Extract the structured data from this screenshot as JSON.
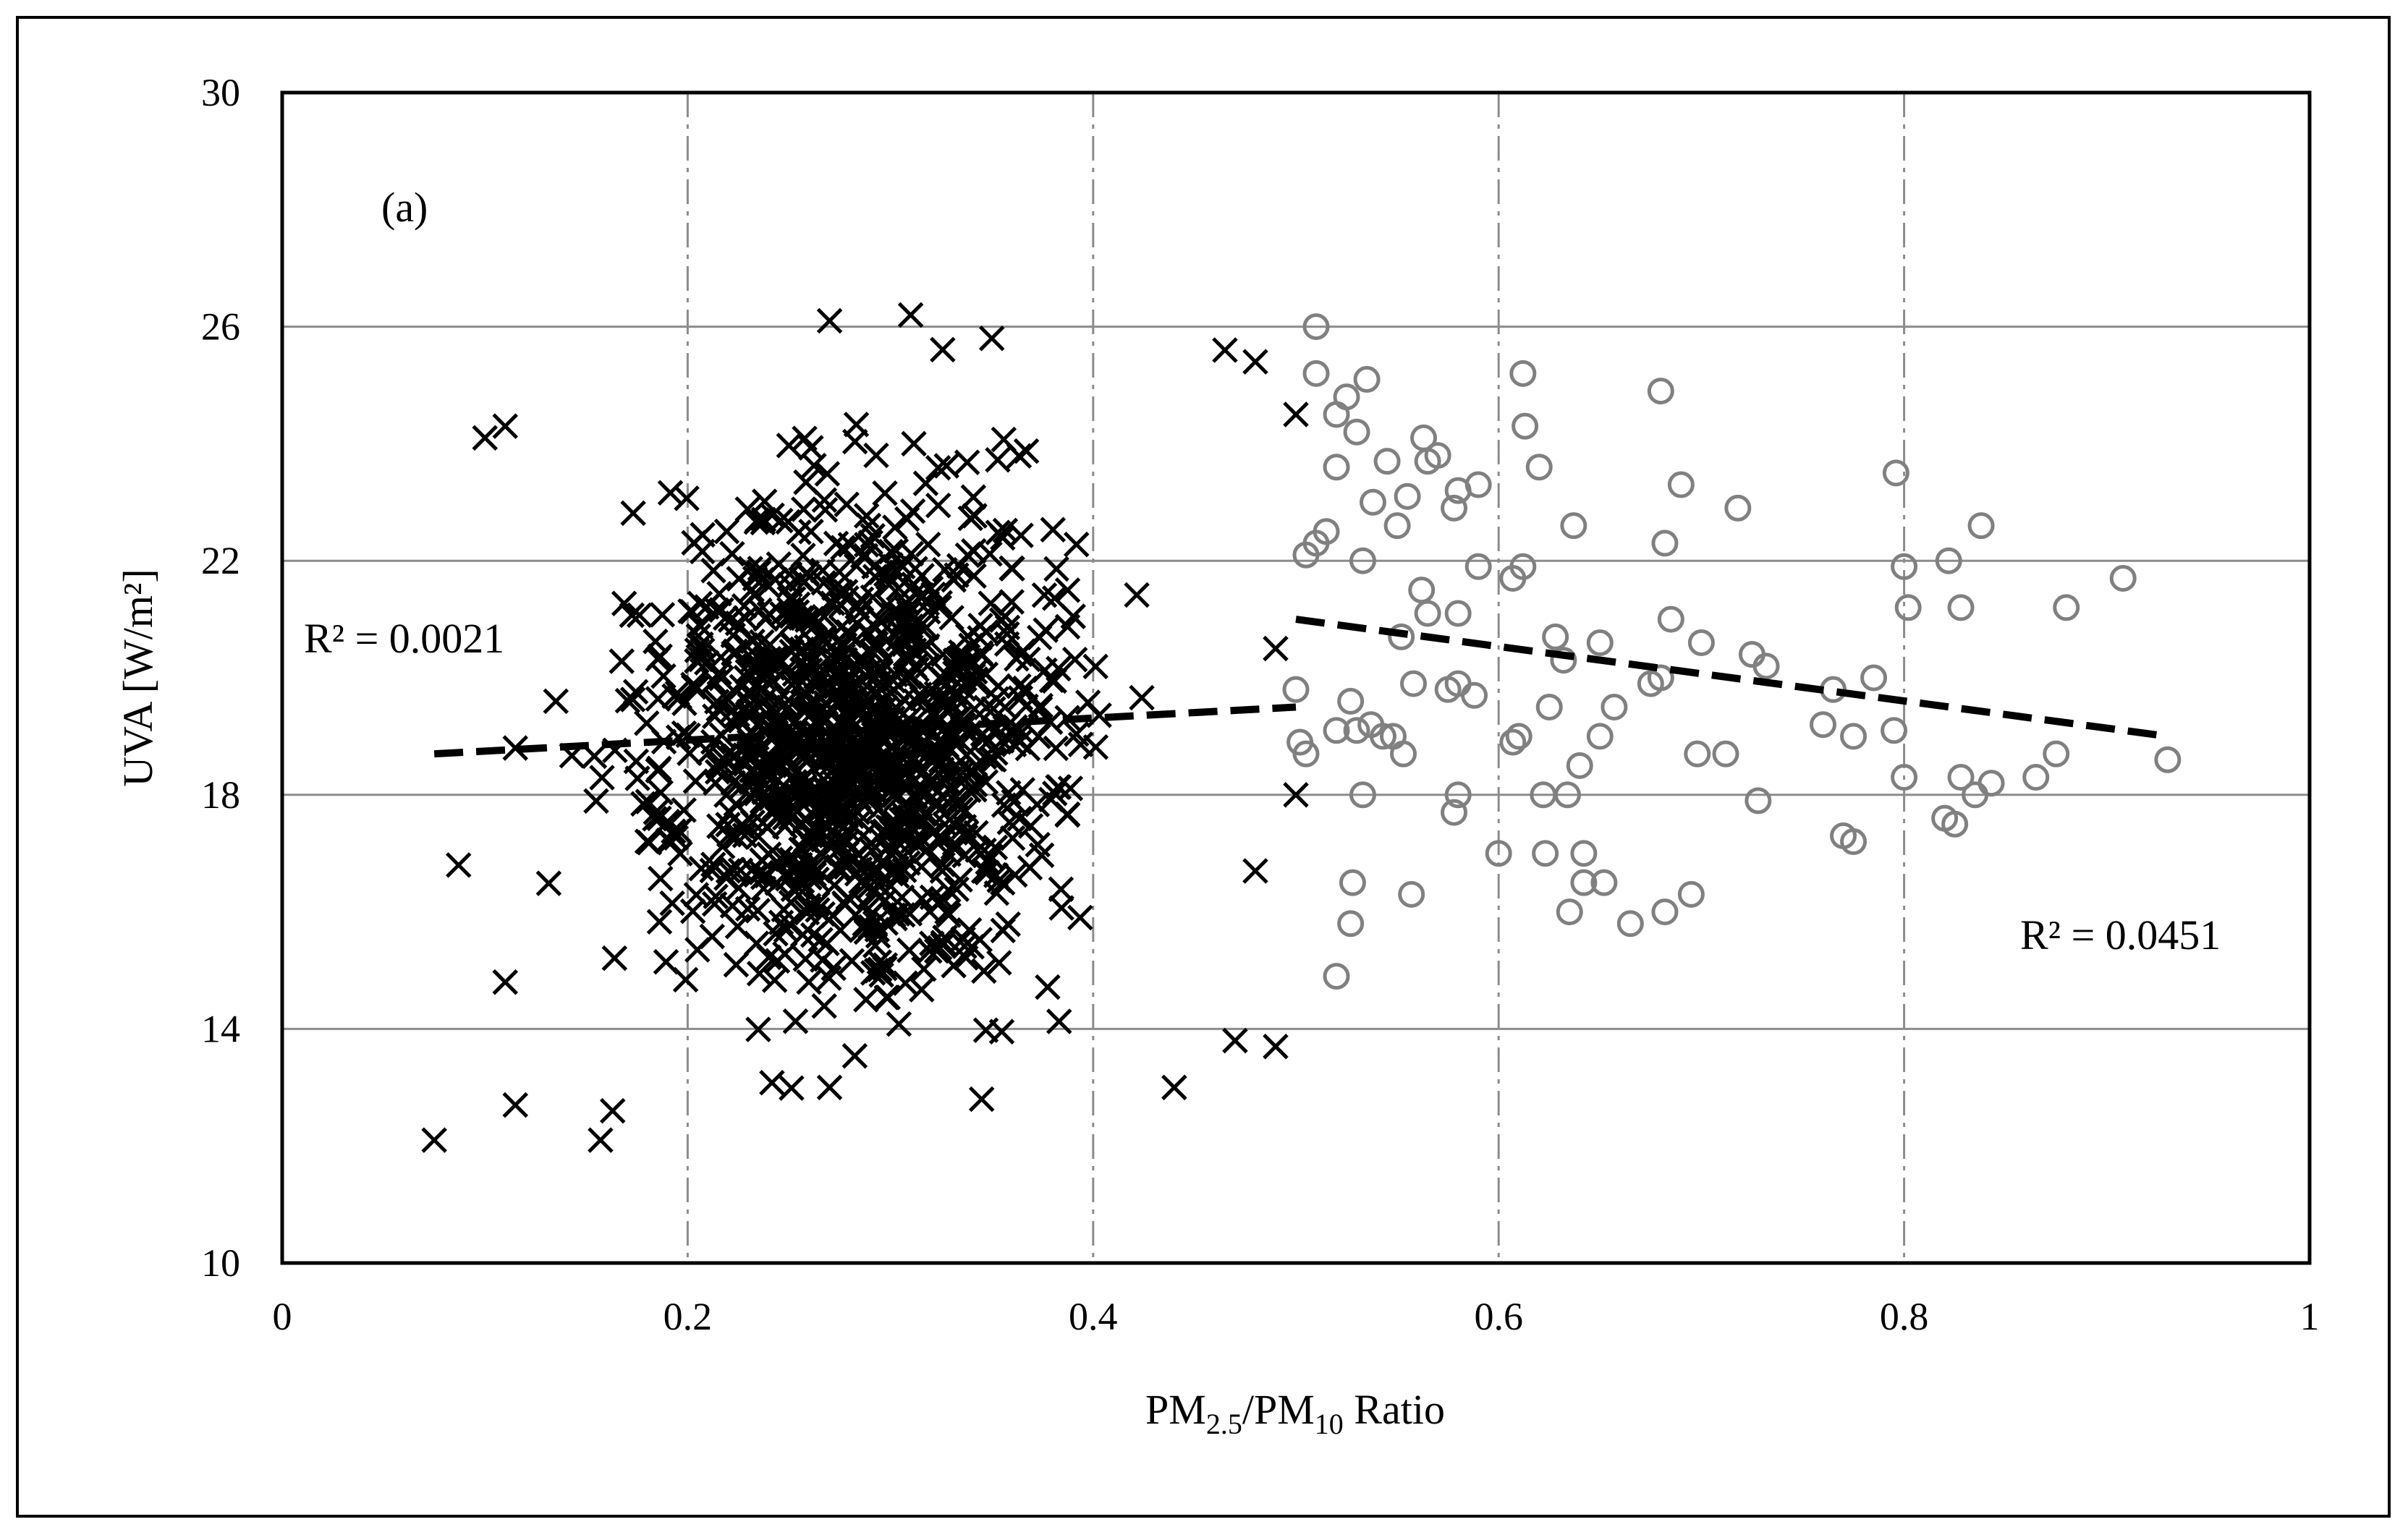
{
  "chart_data": {
    "type": "scatter",
    "title": "",
    "panel_label": "(a)",
    "xlabel": {
      "base": "PM",
      "sub1": "2.5",
      "mid": "/PM",
      "sub2": "10",
      "tail": " Ratio"
    },
    "ylabel": "UVA [W/m²]",
    "xlim": [
      0,
      1
    ],
    "ylim": [
      10,
      30
    ],
    "x_ticks": [
      "0",
      "0.2",
      "0.4",
      "0.6",
      "0.8",
      "1"
    ],
    "y_ticks": [
      "10",
      "14",
      "18",
      "22",
      "26",
      "30"
    ],
    "grid": {
      "horizontal": "solid-gray",
      "vertical": "dash-dot-gray"
    },
    "colors": {
      "series_cross": "#000000",
      "series_circle": "#808080",
      "trend": "#000000"
    },
    "series": [
      {
        "marker": "cross",
        "count_approx": 1200,
        "x_range": [
          0.075,
          0.5
        ],
        "y_range": [
          12,
          26.2
        ],
        "x_center": 0.28,
        "y_center": 19,
        "trendline": {
          "x": [
            0.075,
            0.5
          ],
          "y": [
            18.7,
            19.5
          ]
        },
        "r_squared_label": "R² = 0.0021",
        "points_sample": [
          [
            0.075,
            12.1
          ],
          [
            0.115,
            12.7
          ],
          [
            0.157,
            12.1
          ],
          [
            0.163,
            12.6
          ],
          [
            0.1,
            24.1
          ],
          [
            0.11,
            24.3
          ],
          [
            0.087,
            16.8
          ],
          [
            0.11,
            14.8
          ],
          [
            0.135,
            19.6
          ],
          [
            0.31,
            26.2
          ],
          [
            0.27,
            26.1
          ],
          [
            0.35,
            25.8
          ],
          [
            0.49,
            13.7
          ],
          [
            0.47,
            13.8
          ],
          [
            0.48,
            16.7
          ],
          [
            0.48,
            25.4
          ],
          [
            0.465,
            25.6
          ],
          [
            0.5,
            24.5
          ],
          [
            0.44,
            13.0
          ],
          [
            0.345,
            12.8
          ],
          [
            0.27,
            13.0
          ],
          [
            0.5,
            18.0
          ],
          [
            0.49,
            20.5
          ],
          [
            0.115,
            18.8
          ]
        ]
      },
      {
        "marker": "circle",
        "trendline": {
          "x": [
            0.5,
            0.93
          ],
          "y": [
            21.0,
            19.0
          ]
        },
        "r_squared_label": "R² = 0.0451",
        "points": [
          [
            0.51,
            26.0
          ],
          [
            0.51,
            25.2
          ],
          [
            0.535,
            25.1
          ],
          [
            0.52,
            24.5
          ],
          [
            0.525,
            24.8
          ],
          [
            0.53,
            24.2
          ],
          [
            0.52,
            23.6
          ],
          [
            0.545,
            23.7
          ],
          [
            0.538,
            23.0
          ],
          [
            0.55,
            22.6
          ],
          [
            0.555,
            23.1
          ],
          [
            0.505,
            22.1
          ],
          [
            0.51,
            22.3
          ],
          [
            0.515,
            22.5
          ],
          [
            0.533,
            22.0
          ],
          [
            0.563,
            24.1
          ],
          [
            0.57,
            23.8
          ],
          [
            0.565,
            23.7
          ],
          [
            0.58,
            23.2
          ],
          [
            0.578,
            22.9
          ],
          [
            0.59,
            23.3
          ],
          [
            0.612,
            25.2
          ],
          [
            0.613,
            24.3
          ],
          [
            0.62,
            23.6
          ],
          [
            0.562,
            21.5
          ],
          [
            0.565,
            21.1
          ],
          [
            0.552,
            20.7
          ],
          [
            0.58,
            21.1
          ],
          [
            0.59,
            21.9
          ],
          [
            0.607,
            21.7
          ],
          [
            0.612,
            21.9
          ],
          [
            0.5,
            19.8
          ],
          [
            0.52,
            19.1
          ],
          [
            0.527,
            19.6
          ],
          [
            0.53,
            19.1
          ],
          [
            0.537,
            19.2
          ],
          [
            0.543,
            19.0
          ],
          [
            0.548,
            19.0
          ],
          [
            0.553,
            18.7
          ],
          [
            0.505,
            18.7
          ],
          [
            0.502,
            18.9
          ],
          [
            0.558,
            19.9
          ],
          [
            0.575,
            19.8
          ],
          [
            0.58,
            19.9
          ],
          [
            0.588,
            19.7
          ],
          [
            0.533,
            18.0
          ],
          [
            0.58,
            18.0
          ],
          [
            0.578,
            17.7
          ],
          [
            0.6,
            17.0
          ],
          [
            0.61,
            19.0
          ],
          [
            0.607,
            18.9
          ],
          [
            0.625,
            19.5
          ],
          [
            0.622,
            18.0
          ],
          [
            0.634,
            18.0
          ],
          [
            0.623,
            17.0
          ],
          [
            0.642,
            17.0
          ],
          [
            0.635,
            16.0
          ],
          [
            0.642,
            16.5
          ],
          [
            0.652,
            16.5
          ],
          [
            0.528,
            16.5
          ],
          [
            0.527,
            15.8
          ],
          [
            0.52,
            14.9
          ],
          [
            0.557,
            16.3
          ],
          [
            0.628,
            20.7
          ],
          [
            0.632,
            20.3
          ],
          [
            0.637,
            22.6
          ],
          [
            0.65,
            20.6
          ],
          [
            0.657,
            19.5
          ],
          [
            0.65,
            19.0
          ],
          [
            0.64,
            18.5
          ],
          [
            0.665,
            15.8
          ],
          [
            0.68,
            24.9
          ],
          [
            0.682,
            22.3
          ],
          [
            0.69,
            23.3
          ],
          [
            0.685,
            21.0
          ],
          [
            0.675,
            19.9
          ],
          [
            0.68,
            20.0
          ],
          [
            0.682,
            16.0
          ],
          [
            0.695,
            16.3
          ],
          [
            0.698,
            18.7
          ],
          [
            0.7,
            20.6
          ],
          [
            0.712,
            18.7
          ],
          [
            0.718,
            22.9
          ],
          [
            0.725,
            20.4
          ],
          [
            0.732,
            20.2
          ],
          [
            0.728,
            17.9
          ],
          [
            0.76,
            19.2
          ],
          [
            0.765,
            19.8
          ],
          [
            0.77,
            17.3
          ],
          [
            0.775,
            17.2
          ],
          [
            0.775,
            19.0
          ],
          [
            0.785,
            20.0
          ],
          [
            0.796,
            23.5
          ],
          [
            0.8,
            21.9
          ],
          [
            0.802,
            21.2
          ],
          [
            0.795,
            19.1
          ],
          [
            0.8,
            18.3
          ],
          [
            0.82,
            17.6
          ],
          [
            0.825,
            17.5
          ],
          [
            0.822,
            22.0
          ],
          [
            0.828,
            21.2
          ],
          [
            0.828,
            18.3
          ],
          [
            0.835,
            18.0
          ],
          [
            0.838,
            22.6
          ],
          [
            0.843,
            18.2
          ],
          [
            0.865,
            18.3
          ],
          [
            0.875,
            18.7
          ],
          [
            0.88,
            21.2
          ],
          [
            0.908,
            21.7
          ],
          [
            0.93,
            18.6
          ]
        ]
      }
    ]
  }
}
